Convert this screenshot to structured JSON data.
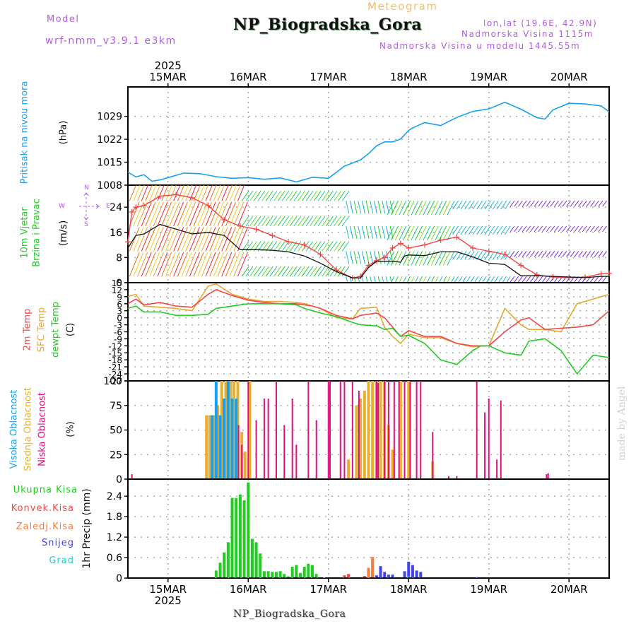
{
  "header": {
    "model_label": "Model",
    "model_name": "wrf-nmm_v3.9.1 e3km",
    "subtitle": "Meteogram",
    "title": "NP_Biogradska_Gora",
    "lonlat": "lon,lat (19.6E, 42.9N)",
    "elevation": "Nadmorska Visina 1115m",
    "model_elevation": "Nadmorska Visina u modelu 1445.55m"
  },
  "footer": {
    "station": "NP_Biogradska_Gora",
    "signature": "made by Angel"
  },
  "colors": {
    "pressure": "#1aa0f0",
    "t2m": "#f04848",
    "tsfc": "#e8a830",
    "dewpt": "#22cc22",
    "wind_speed": "#111111",
    "wind_gust": "#f04848",
    "cloud_high": "#18a0f0",
    "cloud_mid": "#e8b030",
    "cloud_low": "#e0107a",
    "precip_total": "#22cc22",
    "precip_conv": "#f04848",
    "precip_frz": "#f08040",
    "snow": "#4444ee",
    "hail": "#22cccc",
    "model_text": "#b05fe0"
  },
  "chart_data": [
    {
      "type": "line",
      "id": "pressure",
      "ylabel_line1": "Pritisak na nivou mora",
      "ylabel_line2": "(hPa)",
      "xlim_days": [
        14.5,
        20.5
      ],
      "ylim": [
        1008,
        1038
      ],
      "yticks": [
        1008,
        1015,
        1022,
        1029
      ],
      "grid": true,
      "top_axis_year": "2025",
      "x_ticks": [
        "15MAR",
        "16MAR",
        "17MAR",
        "18MAR",
        "19MAR",
        "20MAR"
      ],
      "x_tick_days": [
        15,
        16,
        17,
        18,
        19,
        20
      ],
      "series": [
        {
          "name": "Pritisak na nivou mora",
          "x": [
            14.5,
            14.6,
            14.7,
            14.8,
            14.9,
            15.0,
            15.2,
            15.4,
            15.6,
            15.8,
            16.0,
            16.2,
            16.4,
            16.6,
            16.8,
            17.0,
            17.2,
            17.4,
            17.5,
            17.6,
            17.7,
            17.8,
            17.9,
            18.0,
            18.05,
            18.2,
            18.4,
            18.6,
            18.8,
            19.0,
            19.2,
            19.4,
            19.6,
            19.7,
            19.8,
            20.0,
            20.2,
            20.4,
            20.5
          ],
          "values": [
            1012,
            1010.5,
            1011.2,
            1009.2,
            1009.6,
            1010.3,
            1011.7,
            1011.5,
            1010.6,
            1010.1,
            1010.3,
            1009.8,
            1010.2,
            1009.0,
            1010.4,
            1010.1,
            1013.8,
            1015.7,
            1017.6,
            1020.0,
            1021.2,
            1021.2,
            1022.1,
            1024.7,
            1025.5,
            1027.1,
            1026.2,
            1028.7,
            1030.5,
            1031.3,
            1033.3,
            1031.2,
            1028.6,
            1028.2,
            1031.0,
            1033.0,
            1032.8,
            1032.2,
            1030.4
          ]
        }
      ]
    },
    {
      "type": "line",
      "id": "wind",
      "ylabel_line1": "10m Vjetar",
      "ylabel_line2": "Brzina i Pravac",
      "yunit": "(m/s)",
      "compass": {
        "n": "N",
        "s": "S",
        "e": "E",
        "w": "W"
      },
      "ylim": [
        0,
        31
      ],
      "yticks": [
        0,
        8,
        16,
        24
      ],
      "grid": true,
      "series": [
        {
          "name": "Brzina vjetra",
          "x": [
            14.5,
            14.6,
            14.7,
            14.9,
            15.1,
            15.3,
            15.5,
            15.7,
            15.9,
            16.1,
            16.3,
            16.5,
            16.7,
            16.9,
            17.1,
            17.3,
            17.4,
            17.5,
            17.6,
            17.7,
            17.8,
            17.9,
            17.95,
            18.0,
            18.2,
            18.4,
            18.6,
            18.8,
            19.0,
            19.2,
            19.4,
            19.6,
            19.8,
            20.0,
            20.2,
            20.4,
            20.5
          ],
          "values": [
            11,
            15,
            15.5,
            18.5,
            17,
            15.5,
            16,
            15,
            10.5,
            10.5,
            10.3,
            9.8,
            8.5,
            6.2,
            3.5,
            1.5,
            1.5,
            4.8,
            6.8,
            6.8,
            6.8,
            6.5,
            8.5,
            8.8,
            8.6,
            9.8,
            9.8,
            8.2,
            6.2,
            5.8,
            2.2,
            2.2,
            2.0,
            1.8,
            1.6,
            2.0,
            2.0
          ]
        },
        {
          "name": "Udari vjetra",
          "x": [
            14.5,
            14.55,
            14.6,
            14.7,
            14.9,
            15.1,
            15.3,
            15.5,
            15.7,
            15.9,
            16.1,
            16.3,
            16.5,
            16.7,
            16.9,
            17.1,
            17.3,
            17.4,
            17.5,
            17.6,
            17.7,
            17.8,
            17.9,
            18.0,
            18.2,
            18.4,
            18.6,
            18.8,
            19.0,
            19.2,
            19.4,
            19.6,
            19.8,
            20.0,
            20.2,
            20.4,
            20.5
          ],
          "values": [
            13,
            22.5,
            24,
            24.5,
            27.5,
            28,
            27,
            24.5,
            20,
            18,
            17,
            15,
            13,
            12,
            9,
            4,
            1.5,
            2,
            5.5,
            7,
            8,
            11,
            12.5,
            11,
            12,
            13.5,
            14.5,
            11,
            10,
            9,
            5.5,
            2.5,
            1.8,
            1.6,
            1.8,
            2.8,
            3
          ]
        }
      ]
    },
    {
      "type": "line",
      "id": "temperature",
      "legend": [
        "2m Temp",
        "SFC Temp",
        "dewpt Temp"
      ],
      "yunit": "(C)",
      "ylim": [
        -27,
        15
      ],
      "yticks": [
        15,
        12,
        9,
        6,
        3,
        0,
        -3,
        -6,
        -9,
        -12,
        -15,
        -18,
        -21,
        -24,
        -27
      ],
      "grid": true,
      "x": [
        14.5,
        14.6,
        14.7,
        14.9,
        15.1,
        15.3,
        15.5,
        15.6,
        15.8,
        16.0,
        16.2,
        16.4,
        16.6,
        16.7,
        16.8,
        16.9,
        17.1,
        17.3,
        17.4,
        17.6,
        17.7,
        17.8,
        17.9,
        18.0,
        18.2,
        18.4,
        18.6,
        18.8,
        18.9,
        19.0,
        19.2,
        19.4,
        19.5,
        19.7,
        19.9,
        20.1,
        20.3,
        20.5
      ],
      "series": [
        {
          "name": "2m Temp",
          "values": [
            6,
            8,
            5.5,
            6.5,
            5,
            4.5,
            10,
            12,
            9.5,
            7.5,
            6.5,
            6,
            6,
            5.5,
            5,
            4,
            1,
            -0.5,
            1,
            2,
            0,
            -4,
            -8,
            -5.5,
            -8,
            -8,
            -11,
            -12,
            -12,
            -12,
            -6,
            -1,
            0,
            -5,
            -4.5,
            -4,
            -3,
            3
          ]
        },
        {
          "name": "SFC Temp",
          "values": [
            9,
            10,
            5,
            4.5,
            4,
            3,
            13.5,
            14.5,
            10,
            8,
            7,
            7,
            6.5,
            6,
            5,
            4,
            0,
            -0.5,
            4,
            4.5,
            -4,
            -8,
            -11,
            -7,
            -8.5,
            -8.5,
            -11,
            -12.5,
            -12,
            -12,
            4,
            -3,
            -5,
            -5,
            -6,
            6,
            8,
            10
          ]
        },
        {
          "name": "dewpt Temp",
          "values": [
            4,
            5,
            2.5,
            2.5,
            1,
            1,
            1.5,
            4,
            5,
            6,
            6,
            6,
            5.5,
            4,
            3,
            2,
            0.5,
            -2,
            -3,
            -3.5,
            -5,
            -4.5,
            -8,
            -7.5,
            -11,
            -18,
            -20,
            -14,
            -12,
            -12,
            -15,
            -16,
            -10,
            -9,
            -14,
            -24,
            -16,
            -17
          ]
        }
      ]
    },
    {
      "type": "bar",
      "id": "clouds",
      "legend": [
        "Visoka Oblacnost",
        "Srednja Oblacnost",
        "Niska Oblacnost"
      ],
      "yunit": "(%)",
      "ylim": [
        0,
        100
      ],
      "yticks": [
        0,
        25,
        50,
        75,
        100
      ],
      "grid": true,
      "series": [
        {
          "name": "Visoka Oblacnost",
          "x": [
            15.55,
            15.6,
            15.65,
            15.7,
            15.75,
            15.8,
            15.85
          ],
          "values": [
            65,
            100,
            65,
            82,
            100,
            82,
            82
          ]
        },
        {
          "name": "Srednja Oblacnost",
          "x": [
            15.48,
            15.52,
            15.58,
            15.62,
            15.67,
            15.72,
            15.78,
            15.82,
            15.87,
            15.92,
            15.96,
            16.02,
            17.25,
            17.35,
            17.4,
            17.45,
            17.5,
            17.55,
            17.6,
            17.65,
            17.7,
            17.75,
            17.8,
            17.9,
            18.0,
            18.3
          ],
          "values": [
            65,
            65,
            65,
            75,
            100,
            100,
            100,
            100,
            100,
            48,
            28,
            100,
            20,
            75,
            82,
            90,
            100,
            100,
            100,
            100,
            100,
            55,
            30,
            100,
            100,
            18
          ]
        },
        {
          "name": "Niska Oblacnost",
          "x": [
            14.55,
            15.88,
            15.92,
            16.0,
            16.1,
            16.2,
            16.25,
            16.35,
            16.45,
            16.55,
            16.6,
            16.75,
            16.85,
            17.0,
            17.02,
            17.15,
            17.2,
            17.3,
            17.38,
            17.6,
            17.62,
            17.7,
            17.75,
            17.82,
            17.88,
            17.95,
            18.02,
            18.1,
            18.15,
            18.3,
            18.5,
            18.6,
            18.85,
            18.95,
            19.0,
            19.1,
            19.15,
            19.72,
            19.74
          ],
          "values": [
            5,
            55,
            35,
            100,
            60,
            82,
            82,
            100,
            55,
            82,
            35,
            100,
            60,
            100,
            100,
            100,
            100,
            100,
            90,
            100,
            98,
            100,
            100,
            100,
            100,
            100,
            100,
            100,
            100,
            48,
            3,
            3,
            100,
            68,
            82,
            20,
            80,
            5,
            6
          ]
        }
      ]
    },
    {
      "type": "bar",
      "id": "precip",
      "legend": [
        "Ukupna Kisa",
        "Konvek.Kisa",
        "Zaledj.Kisa",
        "Snijeg",
        "Grad"
      ],
      "ylabel": "1hr Precip (mm)",
      "ylim": [
        0,
        2.9
      ],
      "yticks": [
        0,
        0.6,
        1.2,
        1.8,
        2.4
      ],
      "grid": true,
      "bottom_axis_year": "2025",
      "series": [
        {
          "name": "Ukupna Kisa",
          "x": [
            15.6,
            15.65,
            15.7,
            15.75,
            15.8,
            15.85,
            15.9,
            15.95,
            16.0,
            16.05,
            16.1,
            16.15,
            16.2,
            16.25,
            16.3,
            16.35,
            16.4,
            16.45,
            16.5,
            16.55,
            16.6,
            16.65,
            16.7,
            16.75,
            16.8,
            16.85,
            16.95
          ],
          "values": [
            0.22,
            0.45,
            0.75,
            1.05,
            2.35,
            2.35,
            2.45,
            2.28,
            2.8,
            1.15,
            1.05,
            0.72,
            0.2,
            0.2,
            0.18,
            0.18,
            0.2,
            0.12,
            0.05,
            0.33,
            0.38,
            0.15,
            0.33,
            0.42,
            0.38,
            0.12,
            0.02
          ]
        },
        {
          "name": "Konvek.Kisa",
          "x": [
            17.2,
            17.25,
            17.3,
            17.45,
            17.5,
            17.55
          ],
          "values": [
            0.08,
            0.12,
            0.02,
            0.06,
            0.12,
            0.18
          ]
        },
        {
          "name": "Zaledj.Kisa",
          "x": [
            17.5,
            17.55
          ],
          "values": [
            0.3,
            0.62
          ]
        },
        {
          "name": "Snijeg",
          "x": [
            17.6,
            17.65,
            17.7,
            17.75,
            17.8,
            17.95,
            18.0,
            18.05,
            18.1,
            18.15,
            18.8,
            18.85
          ],
          "values": [
            0.08,
            0.35,
            0.18,
            0.1,
            0.1,
            0.2,
            0.48,
            0.38,
            0.22,
            0.18,
            0.02,
            0.03
          ]
        },
        {
          "name": "Grad",
          "x": [
            18.0
          ],
          "values": [
            0.05
          ]
        }
      ]
    }
  ]
}
